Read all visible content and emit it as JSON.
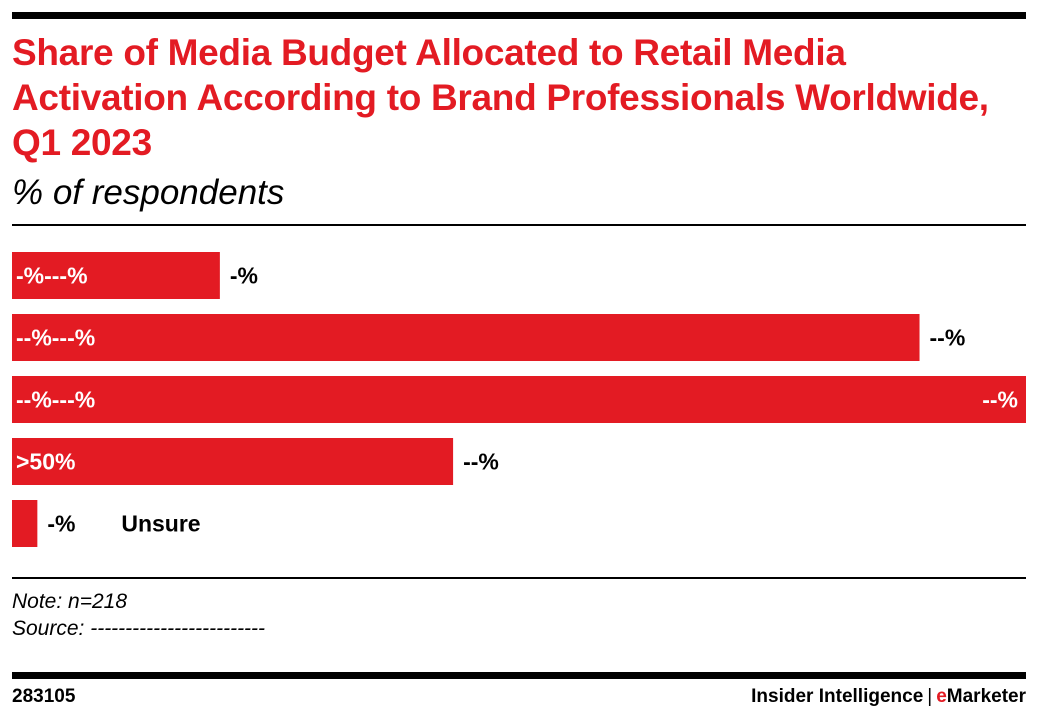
{
  "header": {
    "title": "Share of Media Budget Allocated to Retail Media Activation According to Brand Professionals Worldwide, Q1 2023",
    "subtitle": "% of respondents"
  },
  "chart_data": {
    "type": "bar",
    "orientation": "horizontal",
    "title": "Share of Media Budget Allocated to Retail Media Activation According to Brand Professionals Worldwide, Q1 2023",
    "subtitle": "% of respondents",
    "categories": [
      "-%---%",
      "--%---%",
      "--%---%",
      ">50%",
      "Unsure"
    ],
    "values": [
      20.5,
      89.5,
      100,
      43.5,
      2.5
    ],
    "value_labels": [
      "-%",
      "--%",
      "--%",
      "--%",
      "-%"
    ],
    "xlim": [
      0,
      100
    ],
    "grid": false,
    "legend": "none"
  },
  "notes": {
    "note": "Note: n=218",
    "source": "Source: -------------------------"
  },
  "footer": {
    "id": "283105",
    "brand_main": "Insider Intelligence",
    "brand_sep": "|",
    "brand_e": "e",
    "brand_rest": "Marketer"
  },
  "colors": {
    "bar": "#e31b23",
    "title": "#e31b23",
    "inside_label": "#ffffff",
    "outside_label": "#000000"
  }
}
